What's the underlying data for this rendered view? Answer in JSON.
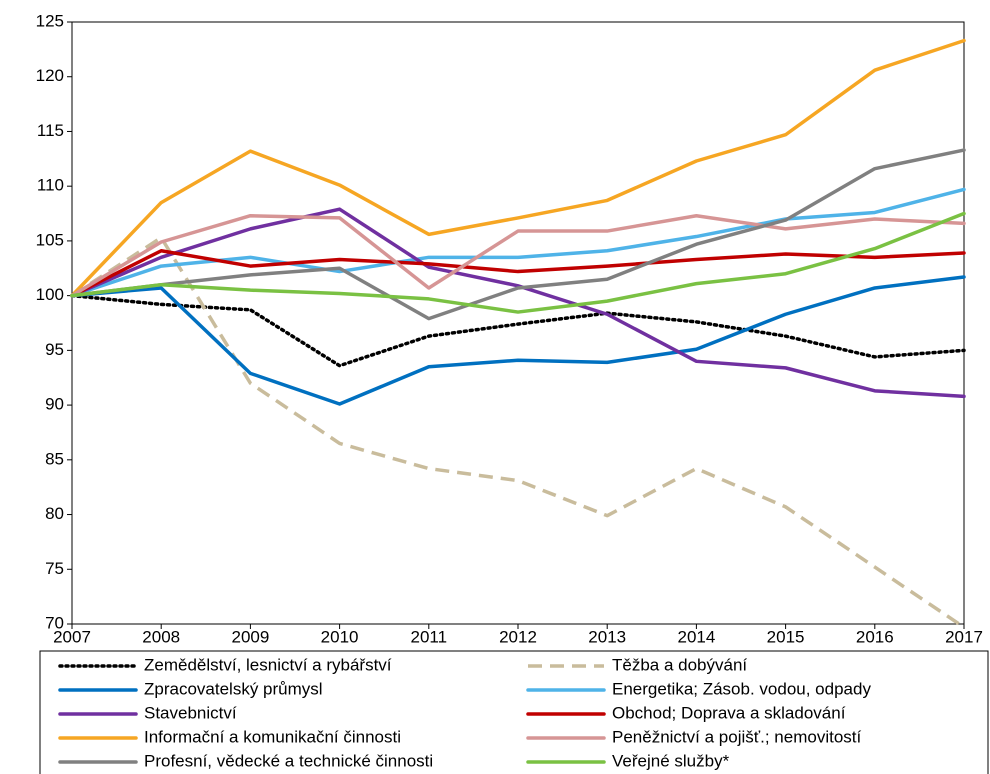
{
  "chart_data": {
    "type": "line",
    "x": [
      2007,
      2008,
      2009,
      2010,
      2011,
      2012,
      2013,
      2014,
      2015,
      2016,
      2017
    ],
    "xlim": [
      2007,
      2017
    ],
    "xticks": [
      2007,
      2008,
      2009,
      2010,
      2011,
      2012,
      2013,
      2014,
      2015,
      2016,
      2017
    ],
    "ylim": [
      70,
      125
    ],
    "yticks": [
      70,
      75,
      80,
      85,
      90,
      95,
      100,
      105,
      110,
      115,
      120,
      125
    ],
    "series": [
      {
        "name": "Zemědělství, lesnictví a rybářství",
        "color": "#000000",
        "style": "dotted",
        "values": [
          100,
          99.2,
          98.7,
          93.6,
          96.3,
          97.4,
          98.4,
          97.6,
          96.3,
          94.4,
          95.0
        ]
      },
      {
        "name": "Těžba a dobývání",
        "color": "#c9bc9c",
        "style": "dashed",
        "values": [
          100,
          105.3,
          92.0,
          86.5,
          84.2,
          83.1,
          79.9,
          84.2,
          80.7,
          75.2,
          69.7
        ]
      },
      {
        "name": "Zpracovatelský průmysl",
        "color": "#0070c0",
        "style": "solid",
        "values": [
          100,
          100.7,
          92.9,
          90.1,
          93.5,
          94.1,
          93.9,
          95.1,
          98.3,
          100.7,
          101.7
        ]
      },
      {
        "name": "Energetika; Zásob. vodou, odpady",
        "color": "#4fb3e8",
        "style": "solid",
        "values": [
          100,
          102.7,
          103.5,
          102.2,
          103.5,
          103.5,
          104.1,
          105.4,
          107.0,
          107.6,
          109.7
        ]
      },
      {
        "name": "Stavebnictví",
        "color": "#7030a0",
        "style": "solid",
        "values": [
          100,
          103.5,
          106.1,
          107.9,
          102.6,
          100.9,
          98.3,
          94.0,
          93.4,
          91.3,
          90.8
        ]
      },
      {
        "name": "Obchod; Doprava a skladování",
        "color": "#c00000",
        "style": "solid",
        "values": [
          100,
          104.1,
          102.7,
          103.3,
          102.9,
          102.2,
          102.7,
          103.3,
          103.8,
          103.5,
          103.9
        ]
      },
      {
        "name": "Informační a komunikační činnosti",
        "color": "#f6a623",
        "style": "solid",
        "values": [
          100,
          108.5,
          113.2,
          110.1,
          105.6,
          107.1,
          108.7,
          112.3,
          114.7,
          120.6,
          123.3
        ]
      },
      {
        "name": "Peněžnictví a pojišť.; nemovitostí",
        "color": "#d69595",
        "style": "solid",
        "values": [
          100,
          104.9,
          107.3,
          107.1,
          100.7,
          105.9,
          105.9,
          107.3,
          106.1,
          107.0,
          106.6
        ]
      },
      {
        "name": "Profesní, vědecké a technické činnosti",
        "color": "#808080",
        "style": "solid",
        "values": [
          100,
          101.0,
          101.9,
          102.5,
          97.9,
          100.7,
          101.5,
          104.7,
          106.9,
          111.6,
          113.3
        ]
      },
      {
        "name": "Veřejné služby*",
        "color": "#7ac143",
        "style": "solid",
        "values": [
          100,
          101.0,
          100.5,
          100.2,
          99.7,
          98.5,
          99.5,
          101.1,
          102.0,
          104.3,
          107.5
        ]
      }
    ]
  }
}
